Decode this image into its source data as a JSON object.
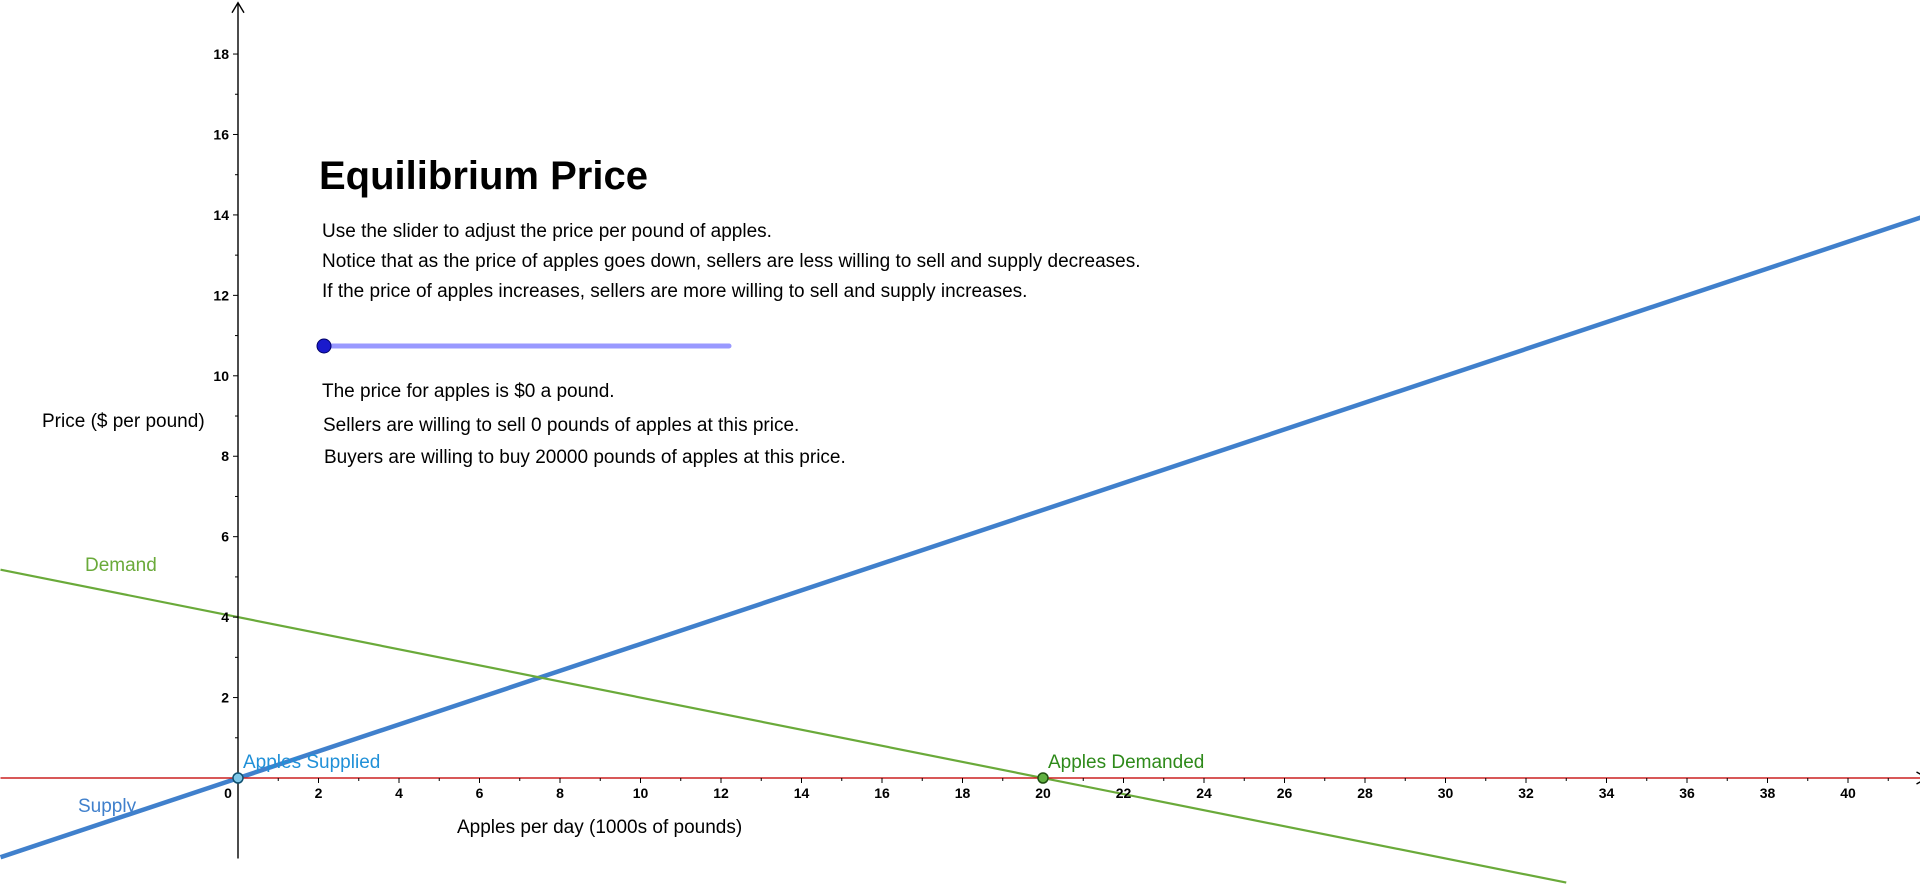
{
  "title": "Equilibrium Price",
  "instructions": [
    "Use the slider to adjust the price per pound of apples.",
    "Notice that as the price of apples goes down, sellers are less willing to sell and supply decreases.",
    "If the price of apples increases, sellers are more willing to sell and supply increases."
  ],
  "status": {
    "price_text": "The price for apples is $0 a pound.",
    "sellers_text": "Sellers are willing to sell 0 pounds of apples at this price.",
    "buyers_text": "Buyers are willing to buy 20000 pounds of apples at this price."
  },
  "slider": {
    "value": 0,
    "min": 0,
    "max": 10,
    "track_color": "#9999ff",
    "handle_color": "#1a1acc"
  },
  "colors": {
    "supply": "#4080cc",
    "demand": "#6aaa3a",
    "x_axis": "#cc2020",
    "supplied_label": "#2090d8",
    "demanded_label": "#2e8a1a"
  },
  "chart_data": {
    "type": "line",
    "xlabel": "Apples per day (1000s of pounds)",
    "ylabel": "Price ($ per pound)",
    "xlim": [
      -5.9,
      42
    ],
    "ylim": [
      -2,
      19.3
    ],
    "x_ticks": [
      0,
      2,
      4,
      6,
      8,
      10,
      12,
      14,
      16,
      18,
      20,
      22,
      24,
      26,
      28,
      30,
      32,
      34,
      36,
      38,
      40
    ],
    "y_ticks": [
      2,
      4,
      6,
      8,
      10,
      12,
      14,
      16,
      18
    ],
    "grid": false,
    "series": [
      {
        "name": "Supply",
        "type": "line",
        "x": [
          -5.9,
          42
        ],
        "y": [
          -1.97,
          14.0
        ]
      },
      {
        "name": "Demand",
        "type": "line",
        "x": [
          -5.9,
          33.0
        ],
        "y": [
          5.18,
          -2.6
        ]
      }
    ],
    "points": [
      {
        "name": "Apples Supplied",
        "x": 0,
        "y": 0
      },
      {
        "name": "Apples Demanded",
        "x": 20,
        "y": 0
      }
    ]
  }
}
